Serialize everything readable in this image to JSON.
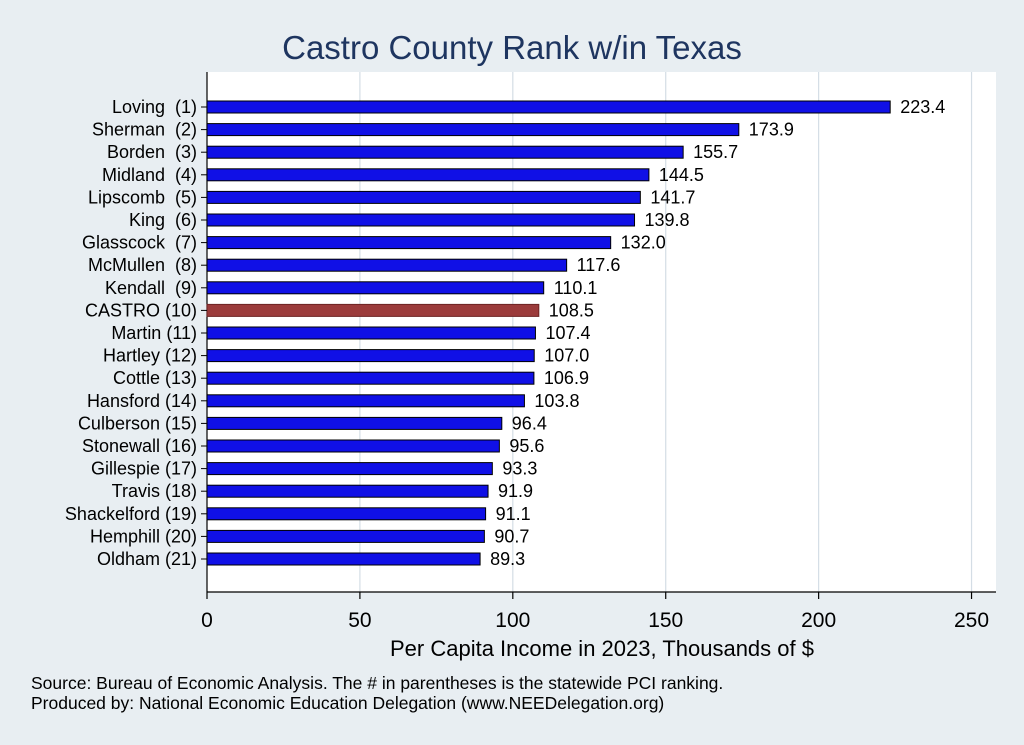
{
  "chart_data": {
    "type": "bar",
    "orientation": "horizontal",
    "title": "Castro County Rank w/in Texas",
    "xlabel": "Per Capita Income in 2023, Thousands of $",
    "ylabel": "",
    "xlim": [
      0,
      258
    ],
    "xticks": [
      0,
      50,
      100,
      150,
      200,
      250
    ],
    "xtick_labels": [
      "0",
      "50",
      "100",
      "150",
      "200",
      "250"
    ],
    "grid": true,
    "categories": [
      "Loving  (1)",
      "Sherman  (2)",
      "Borden  (3)",
      "Midland  (4)",
      "Lipscomb  (5)",
      "King  (6)",
      "Glasscock  (7)",
      "McMullen  (8)",
      "Kendall  (9)",
      "CASTRO (10)",
      "Martin (11)",
      "Hartley (12)",
      "Cottle (13)",
      "Hansford (14)",
      "Culberson (15)",
      "Stonewall (16)",
      "Gillespie (17)",
      "Travis (18)",
      "Shackelford (19)",
      "Hemphill (20)",
      "Oldham (21)"
    ],
    "values": [
      223.4,
      173.9,
      155.7,
      144.5,
      141.7,
      139.8,
      132.0,
      117.6,
      110.1,
      108.5,
      107.4,
      107.0,
      106.9,
      103.8,
      96.4,
      95.6,
      93.3,
      91.9,
      91.1,
      90.7,
      89.3
    ],
    "value_labels": [
      "223.4",
      "173.9",
      "155.7",
      "144.5",
      "141.7",
      "139.8",
      "132.0",
      "117.6",
      "110.1",
      "108.5",
      "107.4",
      "107.0",
      "106.9",
      "103.8",
      "96.4",
      "95.6",
      "93.3",
      "91.9",
      "91.1",
      "90.7",
      "89.3"
    ],
    "highlight_index": 9,
    "colors": {
      "bar": "#1010e6",
      "highlight": "#9b3b3b",
      "grid": "#d4dde5",
      "title": "#1e3560",
      "background": "#e8eef2",
      "plot_bg": "#ffffff"
    },
    "notes": [
      "Source: Bureau of Economic Analysis. The # in parentheses is the statewide PCI ranking.",
      "Produced by: National Economic Education Delegation (www.NEEDelegation.org)"
    ]
  }
}
